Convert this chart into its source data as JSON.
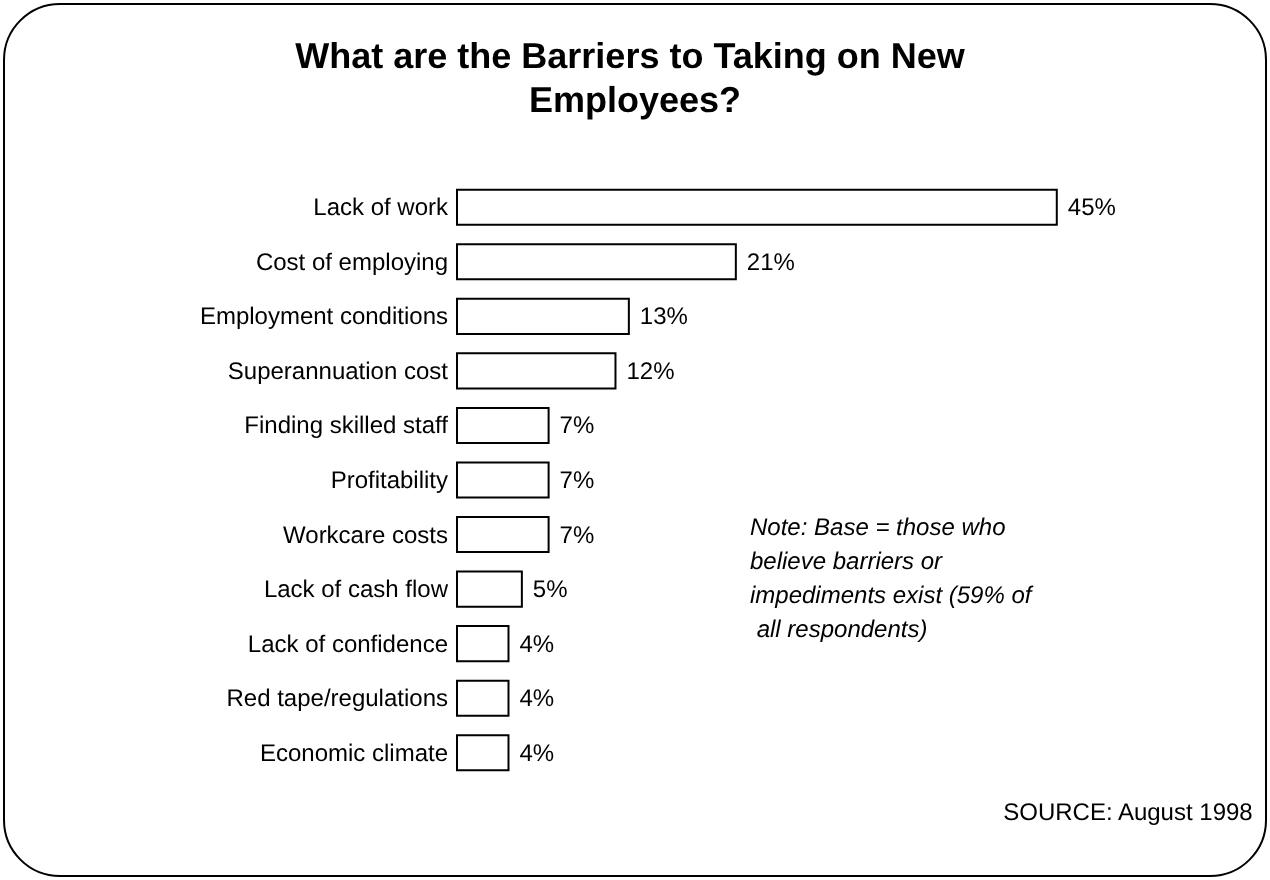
{
  "chart_data": {
    "type": "bar",
    "orientation": "horizontal",
    "title": "What are the Barriers to Taking on New Employees?",
    "categories": [
      "Lack of work",
      "Cost of employing",
      "Employment conditions",
      "Superannuation cost",
      "Finding skilled staff",
      "Profitability",
      "Workcare costs",
      "Lack of cash flow",
      "Lack of confidence",
      "Red tape/regulations",
      "Economic climate"
    ],
    "values": [
      45,
      21,
      13,
      12,
      7,
      7,
      7,
      5,
      4,
      4,
      4
    ],
    "value_labels": [
      "45%",
      "21%",
      "13%",
      "12%",
      "7%",
      "7%",
      "7%",
      "5%",
      "4%",
      "4%",
      "4%"
    ],
    "color": "#ffffff",
    "annotations": [
      "Note: Base = those who believe barriers or impediments exist (59% of all respondents)",
      "SOURCE: August 1998"
    ]
  }
}
